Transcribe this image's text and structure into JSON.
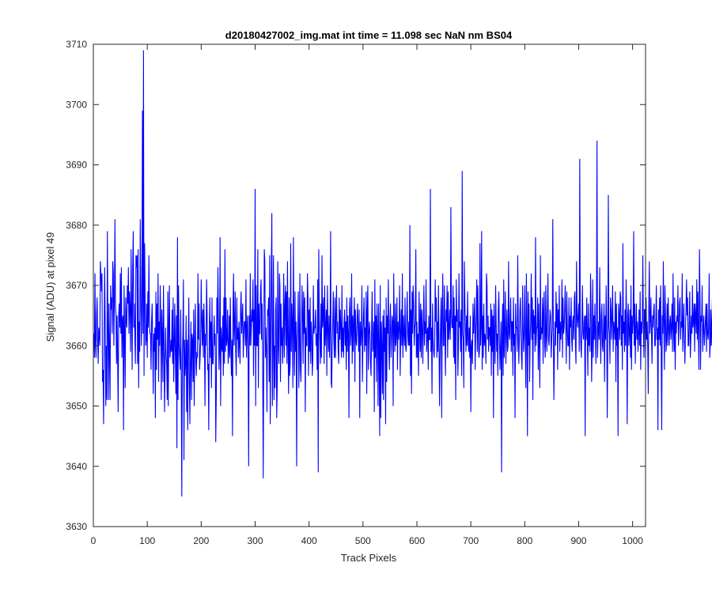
{
  "chart_data": {
    "type": "line",
    "title": "d20180427002_img.mat int time = 11.098 sec  NaN nm BS04",
    "xlabel": "Track Pixels",
    "ylabel": "Signal (ADU) at pixel 49",
    "xlim": [
      0,
      1024
    ],
    "ylim": [
      3630,
      3710
    ],
    "xticks": [
      0,
      100,
      200,
      300,
      400,
      500,
      600,
      700,
      800,
      900,
      1000
    ],
    "yticks": [
      3630,
      3640,
      3650,
      3660,
      3670,
      3680,
      3690,
      3700,
      3710
    ],
    "grid": false,
    "series": [
      {
        "color": "#0000ff",
        "x_start": 1,
        "x_step": 1,
        "values": [
          3662,
          3658,
          3672,
          3660,
          3658,
          3665,
          3668,
          3661,
          3657,
          3663,
          3662,
          3660,
          3674,
          3672,
          3669,
          3672,
          3654,
          3656,
          3647,
          3662,
          3673,
          3663,
          3650,
          3660,
          3651,
          3679,
          3663,
          3651,
          3667,
          3659,
          3651,
          3670,
          3666,
          3668,
          3662,
          3674,
          3672,
          3660,
          3667,
          3681,
          3667,
          3665,
          3657,
          3665,
          3658,
          3649,
          3665,
          3667,
          3663,
          3672,
          3662,
          3673,
          3658,
          3664,
          3665,
          3646,
          3670,
          3662,
          3653,
          3668,
          3664,
          3663,
          3670,
          3667,
          3673,
          3662,
          3669,
          3666,
          3659,
          3676,
          3666,
          3656,
          3673,
          3679,
          3663,
          3667,
          3661,
          3657,
          3675,
          3673,
          3675,
          3657,
          3676,
          3653,
          3664,
          3659,
          3681,
          3669,
          3660,
          3667,
          3699,
          3662,
          3709,
          3655,
          3677,
          3668,
          3660,
          3661,
          3667,
          3658,
          3669,
          3663,
          3675,
          3665,
          3662,
          3662,
          3656,
          3664,
          3667,
          3661,
          3652,
          3662,
          3659,
          3663,
          3648,
          3669,
          3656,
          3667,
          3661,
          3672,
          3654,
          3664,
          3660,
          3670,
          3664,
          3651,
          3666,
          3662,
          3654,
          3670,
          3661,
          3649,
          3656,
          3663,
          3658,
          3657,
          3651,
          3669,
          3650,
          3664,
          3670,
          3658,
          3659,
          3661,
          3659,
          3666,
          3657,
          3668,
          3654,
          3660,
          3667,
          3659,
          3652,
          3665,
          3643,
          3678,
          3651,
          3670,
          3660,
          3658,
          3656,
          3666,
          3654,
          3635,
          3658,
          3662,
          3671,
          3641,
          3661,
          3655,
          3657,
          3665,
          3649,
          3661,
          3646,
          3660,
          3668,
          3654,
          3647,
          3658,
          3664,
          3651,
          3662,
          3661,
          3654,
          3666,
          3650,
          3660,
          3667,
          3658,
          3655,
          3659,
          3658,
          3672,
          3661,
          3667,
          3656,
          3658,
          3661,
          3671,
          3664,
          3660,
          3666,
          3658,
          3667,
          3662,
          3650,
          3662,
          3660,
          3671,
          3665,
          3656,
          3657,
          3646,
          3662,
          3668,
          3658,
          3664,
          3653,
          3668,
          3657,
          3657,
          3661,
          3665,
          3660,
          3662,
          3644,
          3652,
          3668,
          3662,
          3673,
          3664,
          3656,
          3659,
          3678,
          3650,
          3663,
          3660,
          3659,
          3665,
          3655,
          3668,
          3657,
          3676,
          3659,
          3668,
          3660,
          3661,
          3666,
          3657,
          3659,
          3665,
          3658,
          3668,
          3660,
          3655,
          3661,
          3645,
          3666,
          3672,
          3660,
          3663,
          3669,
          3659,
          3655,
          3668,
          3661,
          3663,
          3658,
          3664,
          3660,
          3657,
          3666,
          3669,
          3662,
          3664,
          3667,
          3658,
          3662,
          3664,
          3664,
          3660,
          3671,
          3658,
          3663,
          3665,
          3658,
          3640,
          3665,
          3660,
          3672,
          3660,
          3663,
          3666,
          3664,
          3671,
          3655,
          3666,
          3660,
          3686,
          3650,
          3670,
          3660,
          3660,
          3676,
          3653,
          3667,
          3662,
          3662,
          3669,
          3671,
          3661,
          3667,
          3657,
          3638,
          3658,
          3676,
          3674,
          3658,
          3663,
          3659,
          3649,
          3666,
          3665,
          3668,
          3654,
          3675,
          3647,
          3660,
          3672,
          3682,
          3650,
          3660,
          3675,
          3651,
          3660,
          3653,
          3666,
          3668,
          3648,
          3653,
          3674,
          3660,
          3657,
          3672,
          3670,
          3654,
          3667,
          3660,
          3663,
          3657,
          3662,
          3672,
          3658,
          3666,
          3670,
          3660,
          3669,
          3657,
          3674,
          3661,
          3652,
          3668,
          3655,
          3657,
          3677,
          3659,
          3667,
          3664,
          3653,
          3678,
          3662,
          3655,
          3669,
          3659,
          3664,
          3640,
          3661,
          3663,
          3669,
          3653,
          3660,
          3672,
          3656,
          3654,
          3662,
          3670,
          3665,
          3657,
          3669,
          3662,
          3668,
          3649,
          3663,
          3660,
          3660,
          3672,
          3668,
          3655,
          3666,
          3659,
          3668,
          3657,
          3664,
          3662,
          3655,
          3658,
          3670,
          3662,
          3663,
          3663,
          3666,
          3660,
          3662,
          3656,
          3671,
          3639,
          3676,
          3664,
          3661,
          3657,
          3667,
          3658,
          3675,
          3663,
          3665,
          3668,
          3657,
          3670,
          3660,
          3663,
          3666,
          3655,
          3670,
          3663,
          3659,
          3665,
          3658,
          3663,
          3679,
          3654,
          3653,
          3660,
          3664,
          3669,
          3661,
          3658,
          3668,
          3658,
          3665,
          3670,
          3662,
          3664,
          3659,
          3657,
          3668,
          3661,
          3666,
          3663,
          3658,
          3670,
          3659,
          3663,
          3658,
          3664,
          3666,
          3660,
          3664,
          3656,
          3668,
          3659,
          3665,
          3662,
          3648,
          3666,
          3668,
          3660,
          3662,
          3672,
          3657,
          3665,
          3659,
          3664,
          3668,
          3654,
          3666,
          3661,
          3660,
          3664,
          3667,
          3663,
          3659,
          3666,
          3648,
          3664,
          3660,
          3662,
          3670,
          3654,
          3661,
          3665,
          3668,
          3659,
          3663,
          3660,
          3669,
          3652,
          3666,
          3670,
          3656,
          3662,
          3664,
          3662,
          3657,
          3655,
          3663,
          3669,
          3659,
          3660,
          3664,
          3649,
          3671,
          3658,
          3665,
          3654,
          3667,
          3663,
          3650,
          3667,
          3660,
          3645,
          3670,
          3648,
          3664,
          3660,
          3652,
          3665,
          3651,
          3666,
          3659,
          3663,
          3647,
          3668,
          3654,
          3665,
          3662,
          3671,
          3660,
          3656,
          3664,
          3667,
          3658,
          3661,
          3665,
          3664,
          3650,
          3672,
          3663,
          3659,
          3667,
          3660,
          3662,
          3668,
          3656,
          3664,
          3661,
          3663,
          3670,
          3655,
          3662,
          3666,
          3660,
          3672,
          3658,
          3665,
          3662,
          3660,
          3668,
          3660,
          3659,
          3664,
          3669,
          3662,
          3660,
          3664,
          3660,
          3680,
          3655,
          3666,
          3652,
          3669,
          3662,
          3670,
          3667,
          3660,
          3663,
          3664,
          3676,
          3658,
          3664,
          3658,
          3662,
          3655,
          3669,
          3664,
          3659,
          3667,
          3658,
          3666,
          3663,
          3657,
          3664,
          3670,
          3660,
          3664,
          3662,
          3671,
          3659,
          3662,
          3663,
          3656,
          3665,
          3661,
          3661,
          3686,
          3659,
          3663,
          3652,
          3667,
          3661,
          3659,
          3658,
          3661,
          3671,
          3664,
          3668,
          3658,
          3664,
          3659,
          3670,
          3660,
          3650,
          3659,
          3664,
          3668,
          3648,
          3666,
          3672,
          3660,
          3660,
          3670,
          3662,
          3655,
          3666,
          3664,
          3670,
          3658,
          3669,
          3661,
          3663,
          3666,
          3661,
          3683,
          3665,
          3663,
          3663,
          3670,
          3658,
          3668,
          3657,
          3665,
          3651,
          3671,
          3664,
          3666,
          3655,
          3660,
          3672,
          3663,
          3664,
          3659,
          3666,
          3655,
          3689,
          3662,
          3661,
          3653,
          3674,
          3667,
          3663,
          3659,
          3665,
          3660,
          3669,
          3661,
          3659,
          3663,
          3658,
          3665,
          3649,
          3660,
          3661,
          3657,
          3667,
          3662,
          3664,
          3668,
          3656,
          3662,
          3665,
          3671,
          3659,
          3670,
          3661,
          3658,
          3659,
          3677,
          3660,
          3663,
          3679,
          3656,
          3665,
          3658,
          3667,
          3660,
          3662,
          3661,
          3657,
          3672,
          3670,
          3661,
          3665,
          3659,
          3663,
          3663,
          3660,
          3667,
          3655,
          3666,
          3659,
          3665,
          3648,
          3667,
          3661,
          3657,
          3670,
          3664,
          3659,
          3662,
          3655,
          3666,
          3669,
          3661,
          3656,
          3660,
          3664,
          3639,
          3662,
          3667,
          3655,
          3671,
          3658,
          3663,
          3669,
          3657,
          3662,
          3666,
          3659,
          3660,
          3674,
          3662,
          3661,
          3665,
          3668,
          3659,
          3664,
          3664,
          3655,
          3668,
          3660,
          3662,
          3648,
          3667,
          3663,
          3663,
          3659,
          3675,
          3664,
          3657,
          3661,
          3666,
          3668,
          3662,
          3658,
          3656,
          3670,
          3663,
          3659,
          3662,
          3670,
          3661,
          3653,
          3672,
          3664,
          3645,
          3669,
          3660,
          3667,
          3654,
          3661,
          3664,
          3672,
          3661,
          3668,
          3651,
          3666,
          3662,
          3665,
          3659,
          3678,
          3660,
          3663,
          3663,
          3668,
          3656,
          3667,
          3660,
          3653,
          3675,
          3661,
          3663,
          3662,
          3668,
          3657,
          3666,
          3669,
          3660,
          3658,
          3670,
          3662,
          3659,
          3666,
          3672,
          3661,
          3660,
          3663,
          3666,
          3665,
          3658,
          3661,
          3663,
          3681,
          3662,
          3651,
          3659,
          3664,
          3660,
          3669,
          3663,
          3667,
          3656,
          3666,
          3662,
          3670,
          3659,
          3664,
          3661,
          3663,
          3671,
          3658,
          3668,
          3662,
          3663,
          3666,
          3670,
          3664,
          3657,
          3669,
          3663,
          3660,
          3660,
          3668,
          3656,
          3665,
          3663,
          3668,
          3661,
          3659,
          3664,
          3665,
          3661,
          3668,
          3669,
          3660,
          3657,
          3674,
          3665,
          3663,
          3665,
          3667,
          3659,
          3691,
          3663,
          3660,
          3658,
          3664,
          3670,
          3662,
          3661,
          3664,
          3665,
          3645,
          3665,
          3661,
          3668,
          3662,
          3655,
          3667,
          3660,
          3663,
          3659,
          3672,
          3666,
          3654,
          3660,
          3671,
          3658,
          3665,
          3661,
          3667,
          3662,
          3657,
          3665,
          3694,
          3658,
          3662,
          3664,
          3661,
          3673,
          3663,
          3657,
          3665,
          3667,
          3660,
          3659,
          3663,
          3667,
          3654,
          3665,
          3661,
          3670,
          3662,
          3648,
          3660,
          3685,
          3663,
          3662,
          3657,
          3668,
          3666,
          3661,
          3665,
          3670,
          3659,
          3664,
          3663,
          3661,
          3669,
          3654,
          3667,
          3660,
          3663,
          3645,
          3667,
          3665,
          3661,
          3669,
          3668,
          3660,
          3665,
          3656,
          3677,
          3662,
          3664,
          3659,
          3666,
          3660,
          3671,
          3663,
          3647,
          3665,
          3667,
          3660,
          3662,
          3666,
          3658,
          3670,
          3656,
          3665,
          3662,
          3664,
          3679,
          3660,
          3667,
          3657,
          3663,
          3667,
          3661,
          3664,
          3659,
          3662,
          3666,
          3660,
          3669,
          3656,
          3664,
          3662,
          3664,
          3675,
          3663,
          3658,
          3666,
          3666,
          3658,
          3668,
          3661,
          3664,
          3660,
          3652,
          3666,
          3674,
          3662,
          3664,
          3668,
          3662,
          3657,
          3665,
          3663,
          3666,
          3667,
          3660,
          3660,
          3664,
          3670,
          3661,
          3663,
          3646,
          3666,
          3661,
          3668,
          3660,
          3670,
          3659,
          3646,
          3665,
          3662,
          3674,
          3663,
          3656,
          3670,
          3665,
          3659,
          3661,
          3667,
          3660,
          3668,
          3663,
          3660,
          3664,
          3665,
          3661,
          3663,
          3667,
          3659,
          3672,
          3663,
          3659,
          3668,
          3656,
          3664,
          3662,
          3665,
          3664,
          3670,
          3660,
          3663,
          3667,
          3668,
          3661,
          3664,
          3663,
          3672,
          3659,
          3663,
          3667,
          3661,
          3657,
          3662,
          3666,
          3671,
          3665,
          3668,
          3660,
          3660,
          3664,
          3669,
          3658,
          3661,
          3665,
          3662,
          3670,
          3663,
          3664,
          3667,
          3659,
          3667,
          3665,
          3662,
          3671,
          3661,
          3669,
          3662,
          3656,
          3676,
          3668,
          3656,
          3665,
          3664,
          3670,
          3659,
          3663,
          3665,
          3660,
          3662,
          3664,
          3667,
          3659,
          3667,
          3662,
          3661,
          3663,
          3672,
          3658,
          3660,
          3666,
          3660,
          3664,
          3668,
          3656,
          3664,
          3665,
          3663,
          3666,
          3661,
          3670,
          3662,
          3665,
          3659,
          3664,
          3660,
          3667,
          3672,
          3648,
          3669,
          3660,
          3661,
          3658,
          3665,
          3671,
          3667,
          3656,
          3662,
          3664,
          3672,
          3659,
          3670,
          3648,
          3665,
          3668,
          3659,
          3666
        ]
      }
    ]
  }
}
